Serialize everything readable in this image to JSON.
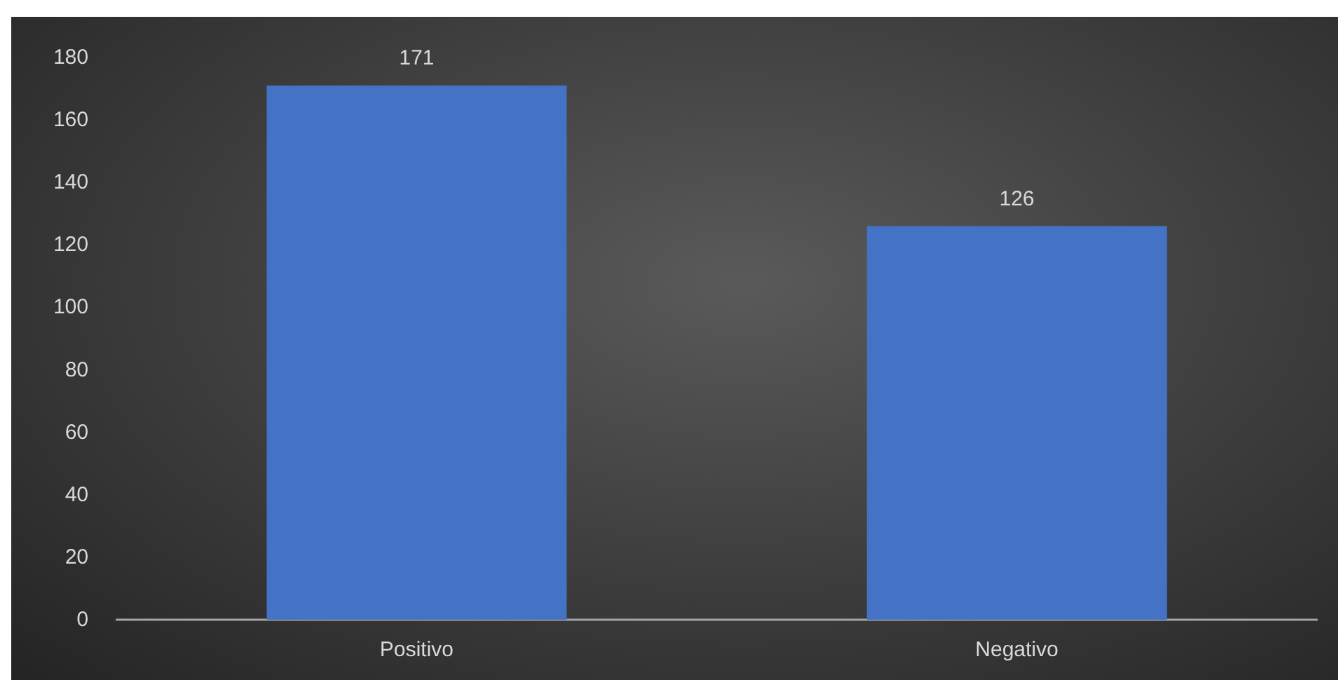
{
  "chart_data": {
    "type": "bar",
    "categories": [
      "Positivo",
      "Negativo"
    ],
    "values": [
      171,
      126
    ],
    "color": "#4472c4",
    "ylim": [
      0,
      180
    ],
    "yticks": [
      0,
      20,
      40,
      60,
      80,
      100,
      120,
      140,
      160,
      180
    ],
    "grid": false,
    "data_labels": true
  }
}
